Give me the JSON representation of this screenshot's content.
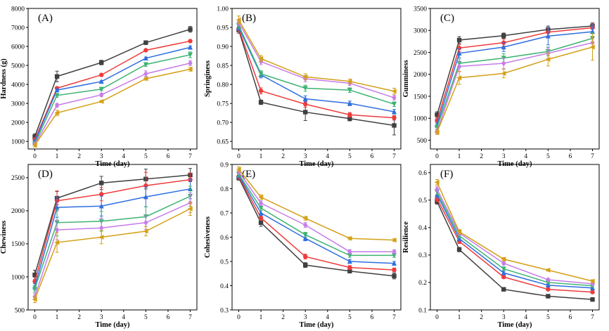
{
  "series_colors": [
    "#404040",
    "#ee3b3b",
    "#2f6fe0",
    "#3cb371",
    "#c77ce8",
    "#d4a017"
  ],
  "chart_data": [
    {
      "type": "line",
      "panel_label": "(A)",
      "xlabel": "Time (day)",
      "ylabel": "Hardness (g)",
      "x": [
        0,
        1,
        3,
        5,
        7
      ],
      "xticks": [
        0,
        1,
        2,
        3,
        4,
        5,
        6,
        7
      ],
      "yticks": [
        1000,
        2000,
        3000,
        4000,
        5000,
        6000,
        7000,
        8000
      ],
      "xlim": [
        -0.3,
        7.3
      ],
      "ylim": [
        600,
        8000
      ],
      "series": [
        {
          "values": [
            1250,
            4420,
            5150,
            6200,
            6900
          ],
          "errors": [
            150,
            280,
            120,
            100,
            150
          ]
        },
        {
          "values": [
            1100,
            3800,
            4500,
            5800,
            6280
          ],
          "errors": [
            80,
            80,
            60,
            50,
            60
          ]
        },
        {
          "values": [
            1000,
            3700,
            4150,
            5380,
            5950
          ],
          "errors": [
            70,
            70,
            60,
            60,
            70
          ]
        },
        {
          "values": [
            900,
            3420,
            3750,
            5050,
            5560
          ],
          "errors": [
            70,
            90,
            80,
            100,
            150
          ]
        },
        {
          "values": [
            850,
            2900,
            3450,
            4560,
            5120
          ],
          "errors": [
            70,
            100,
            90,
            150,
            120
          ]
        },
        {
          "values": [
            800,
            2500,
            3100,
            4300,
            4800
          ],
          "errors": [
            100,
            150,
            60,
            80,
            100
          ]
        }
      ]
    },
    {
      "type": "line",
      "panel_label": "(B)",
      "xlabel": "Time (day)",
      "ylabel": "Springiness",
      "x": [
        0,
        1,
        3,
        5,
        7
      ],
      "xticks": [
        0,
        1,
        2,
        3,
        4,
        5,
        6,
        7
      ],
      "yticks": [
        0.65,
        0.7,
        0.75,
        0.8,
        0.85,
        0.9,
        0.95,
        1.0
      ],
      "ytick_labels": [
        "0.65",
        "0.70",
        "0.75",
        "0.80",
        "0.85",
        "0.90",
        "0.95",
        "1.00"
      ],
      "xlim": [
        -0.3,
        7.3
      ],
      "ylim": [
        0.63,
        1.0
      ],
      "series": [
        {
          "values": [
            0.943,
            0.753,
            0.727,
            0.71,
            0.692
          ],
          "errors": [
            0.008,
            0.006,
            0.022,
            0.006,
            0.025
          ]
        },
        {
          "values": [
            0.946,
            0.783,
            0.748,
            0.72,
            0.712
          ],
          "errors": [
            0.008,
            0.008,
            0.008,
            0.006,
            0.006
          ]
        },
        {
          "values": [
            0.95,
            0.825,
            0.762,
            0.75,
            0.728
          ],
          "errors": [
            0.008,
            0.008,
            0.008,
            0.006,
            0.006
          ]
        },
        {
          "values": [
            0.955,
            0.828,
            0.79,
            0.785,
            0.748
          ],
          "errors": [
            0.008,
            0.008,
            0.008,
            0.006,
            0.006
          ]
        },
        {
          "values": [
            0.963,
            0.86,
            0.815,
            0.803,
            0.765
          ],
          "errors": [
            0.008,
            0.008,
            0.008,
            0.006,
            0.006
          ]
        },
        {
          "values": [
            0.97,
            0.868,
            0.82,
            0.808,
            0.782
          ],
          "errors": [
            0.01,
            0.008,
            0.008,
            0.006,
            0.008
          ]
        }
      ]
    },
    {
      "type": "line",
      "panel_label": "(C)",
      "xlabel": "Time (day)",
      "ylabel": "Gumminess",
      "x": [
        0,
        1,
        3,
        5,
        7
      ],
      "xticks": [
        0,
        1,
        2,
        3,
        4,
        5,
        6,
        7
      ],
      "yticks": [
        500,
        1000,
        1500,
        2000,
        2500,
        3000,
        3500
      ],
      "xlim": [
        -0.3,
        7.3
      ],
      "ylim": [
        300,
        3500
      ],
      "series": [
        {
          "values": [
            1080,
            2780,
            2880,
            3020,
            3100
          ],
          "errors": [
            70,
            80,
            60,
            80,
            70
          ]
        },
        {
          "values": [
            950,
            2600,
            2720,
            2960,
            3060
          ],
          "errors": [
            60,
            80,
            80,
            90,
            90
          ]
        },
        {
          "values": [
            850,
            2480,
            2620,
            2870,
            2970
          ],
          "errors": [
            60,
            100,
            100,
            200,
            150
          ]
        },
        {
          "values": [
            800,
            2250,
            2370,
            2520,
            2820
          ],
          "errors": [
            50,
            100,
            100,
            100,
            120
          ]
        },
        {
          "values": [
            700,
            2180,
            2250,
            2480,
            2720
          ],
          "errors": [
            50,
            120,
            120,
            120,
            100
          ]
        },
        {
          "values": [
            680,
            1920,
            2020,
            2340,
            2620
          ],
          "errors": [
            50,
            150,
            100,
            150,
            300
          ]
        }
      ]
    },
    {
      "type": "line",
      "panel_label": "(D)",
      "xlabel": "Time (day)",
      "ylabel": "Chewiness",
      "x": [
        0,
        1,
        3,
        5,
        7
      ],
      "xticks": [
        0,
        1,
        2,
        3,
        4,
        5,
        6,
        7
      ],
      "yticks": [
        500,
        1000,
        1500,
        2000,
        2500
      ],
      "xlim": [
        -0.3,
        7.3
      ],
      "ylim": [
        500,
        2700
      ],
      "series": [
        {
          "values": [
            1030,
            2190,
            2420,
            2480,
            2540
          ],
          "errors": [
            70,
            100,
            100,
            150,
            100
          ]
        },
        {
          "values": [
            930,
            2150,
            2250,
            2380,
            2470
          ],
          "errors": [
            60,
            150,
            100,
            200,
            100
          ]
        },
        {
          "values": [
            850,
            2050,
            2070,
            2210,
            2330
          ],
          "errors": [
            50,
            150,
            150,
            150,
            150
          ]
        },
        {
          "values": [
            820,
            1820,
            1840,
            1910,
            2220
          ],
          "errors": [
            50,
            200,
            150,
            150,
            150
          ]
        },
        {
          "values": [
            700,
            1710,
            1740,
            1820,
            2120
          ],
          "errors": [
            50,
            150,
            150,
            100,
            150
          ]
        },
        {
          "values": [
            660,
            1520,
            1600,
            1690,
            2030
          ],
          "errors": [
            50,
            150,
            100,
            70,
            100
          ]
        }
      ]
    },
    {
      "type": "line",
      "panel_label": "(E)",
      "xlabel": "Time (day)",
      "ylabel": "Cohesiveness",
      "x": [
        0,
        1,
        3,
        5,
        7
      ],
      "xticks": [
        0,
        1,
        2,
        3,
        4,
        5,
        6,
        7
      ],
      "yticks": [
        0.3,
        0.4,
        0.5,
        0.6,
        0.7,
        0.8,
        0.9
      ],
      "ytick_labels": [
        "0.3",
        "0.4",
        "0.5",
        "0.6",
        "0.7",
        "0.8",
        "0.9"
      ],
      "xlim": [
        -0.3,
        7.3
      ],
      "ylim": [
        0.3,
        0.9
      ],
      "series": [
        {
          "values": [
            0.845,
            0.66,
            0.485,
            0.46,
            0.44
          ],
          "errors": [
            0.01,
            0.015,
            0.01,
            0.008,
            0.012
          ]
        },
        {
          "values": [
            0.85,
            0.68,
            0.52,
            0.475,
            0.465
          ],
          "errors": [
            0.01,
            0.01,
            0.01,
            0.008,
            0.008
          ]
        },
        {
          "values": [
            0.855,
            0.7,
            0.595,
            0.5,
            0.492
          ],
          "errors": [
            0.01,
            0.01,
            0.01,
            0.008,
            0.008
          ]
        },
        {
          "values": [
            0.86,
            0.72,
            0.61,
            0.525,
            0.525
          ],
          "errors": [
            0.01,
            0.01,
            0.01,
            0.008,
            0.008
          ]
        },
        {
          "values": [
            0.87,
            0.74,
            0.65,
            0.54,
            0.54
          ],
          "errors": [
            0.01,
            0.01,
            0.01,
            0.008,
            0.008
          ]
        },
        {
          "values": [
            0.88,
            0.765,
            0.678,
            0.595,
            0.588
          ],
          "errors": [
            0.01,
            0.01,
            0.008,
            0.006,
            0.006
          ]
        }
      ]
    },
    {
      "type": "line",
      "panel_label": "(F)",
      "xlabel": "Time (day)",
      "ylabel": "Resilience",
      "x": [
        0,
        1,
        3,
        5,
        7
      ],
      "xticks": [
        0,
        1,
        2,
        3,
        4,
        5,
        6,
        7
      ],
      "yticks": [
        0.1,
        0.2,
        0.3,
        0.4,
        0.5,
        0.6
      ],
      "ytick_labels": [
        "0.1",
        "0.2",
        "0.3",
        "0.4",
        "0.5",
        "0.6"
      ],
      "xlim": [
        -0.3,
        7.3
      ],
      "ylim": [
        0.1,
        0.63
      ],
      "series": [
        {
          "values": [
            0.495,
            0.32,
            0.175,
            0.15,
            0.138
          ],
          "errors": [
            0.01,
            0.008,
            0.006,
            0.004,
            0.004
          ]
        },
        {
          "values": [
            0.505,
            0.35,
            0.22,
            0.175,
            0.165
          ],
          "errors": [
            0.01,
            0.008,
            0.006,
            0.004,
            0.004
          ]
        },
        {
          "values": [
            0.52,
            0.36,
            0.235,
            0.19,
            0.18
          ],
          "errors": [
            0.01,
            0.008,
            0.006,
            0.004,
            0.004
          ]
        },
        {
          "values": [
            0.53,
            0.37,
            0.25,
            0.2,
            0.188
          ],
          "errors": [
            0.01,
            0.008,
            0.006,
            0.004,
            0.004
          ]
        },
        {
          "values": [
            0.54,
            0.38,
            0.27,
            0.21,
            0.195
          ],
          "errors": [
            0.01,
            0.008,
            0.006,
            0.004,
            0.004
          ]
        },
        {
          "values": [
            0.565,
            0.385,
            0.285,
            0.245,
            0.205
          ],
          "errors": [
            0.01,
            0.008,
            0.006,
            0.004,
            0.005
          ]
        }
      ]
    }
  ]
}
